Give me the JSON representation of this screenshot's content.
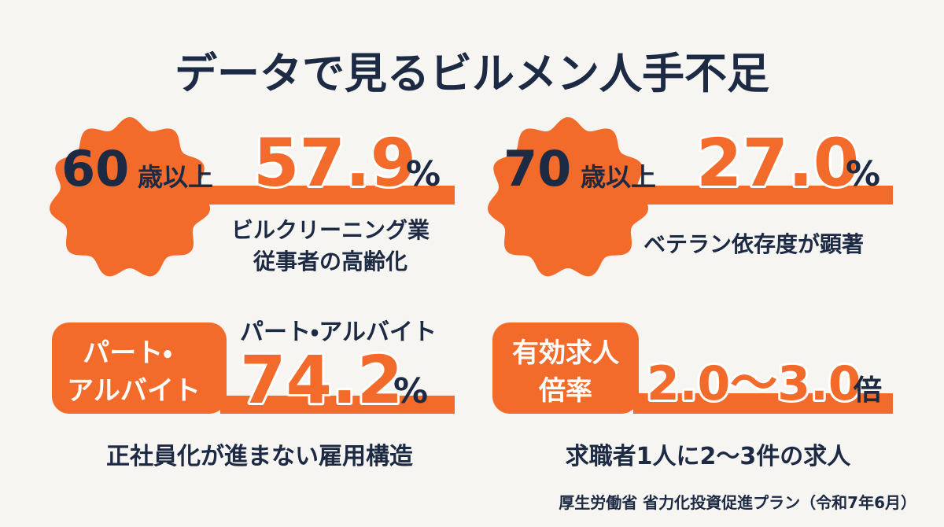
{
  "title": "データで見るビルメン人手不足",
  "cards": [
    {
      "age": "60",
      "age_unit": "歳以上",
      "value": "57.9",
      "unit": "%",
      "description": [
        "ビルクリーニング業",
        "従事者の高齢化"
      ]
    },
    {
      "age": "70",
      "age_unit": "歳以上",
      "value": "27.0",
      "unit": "%",
      "description": [
        "ベテラン依存度が顕著"
      ]
    },
    {
      "label": [
        "パート・",
        "アルバイト"
      ],
      "heading": "パート・アルバイト",
      "value": "74.2",
      "unit": "%",
      "description": [
        "正社員化が進まない雇用構造"
      ]
    },
    {
      "label": [
        "有効求人",
        "倍率"
      ],
      "value": "2.0〜3.0",
      "unit": "倍",
      "description": [
        "求職者1人に2〜3件の求人"
      ]
    }
  ],
  "source": "厚生労働省 省力化投資促進プラン（令和7年6月）"
}
